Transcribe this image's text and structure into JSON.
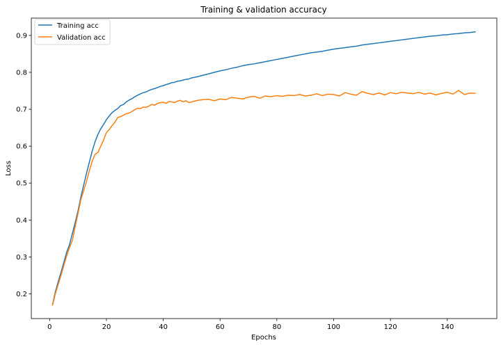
{
  "chart_data": {
    "type": "line",
    "title": "Training & validation accuracy",
    "xlabel": "Epochs",
    "ylabel": "Loss",
    "xlim": [
      -6.45,
      157.45
    ],
    "ylim": [
      0.133,
      0.947
    ],
    "xticks": [
      0,
      20,
      40,
      60,
      80,
      100,
      120,
      140
    ],
    "yticks": [
      0.2,
      0.3,
      0.4,
      0.5,
      0.6,
      0.7,
      0.8,
      0.9
    ],
    "grid": false,
    "legend": "top-left",
    "series": [
      {
        "name": "Training acc",
        "color": "#1f77b4",
        "points": [
          [
            1,
            0.17
          ],
          [
            2,
            0.205
          ],
          [
            3,
            0.232
          ],
          [
            4,
            0.258
          ],
          [
            5,
            0.285
          ],
          [
            6,
            0.313
          ],
          [
            7,
            0.333
          ],
          [
            8,
            0.363
          ],
          [
            9,
            0.393
          ],
          [
            10,
            0.425
          ],
          [
            11,
            0.462
          ],
          [
            12,
            0.495
          ],
          [
            13,
            0.527
          ],
          [
            14,
            0.557
          ],
          [
            15,
            0.587
          ],
          [
            16,
            0.612
          ],
          [
            17,
            0.632
          ],
          [
            18,
            0.647
          ],
          [
            19,
            0.659
          ],
          [
            20,
            0.672
          ],
          [
            21,
            0.682
          ],
          [
            22,
            0.691
          ],
          [
            23,
            0.697
          ],
          [
            24,
            0.702
          ],
          [
            25,
            0.71
          ],
          [
            26,
            0.713
          ],
          [
            27,
            0.72
          ],
          [
            28,
            0.725
          ],
          [
            29,
            0.729
          ],
          [
            30,
            0.734
          ],
          [
            31,
            0.738
          ],
          [
            32,
            0.742
          ],
          [
            33,
            0.745
          ],
          [
            34,
            0.747
          ],
          [
            35,
            0.751
          ],
          [
            36,
            0.754
          ],
          [
            37,
            0.756
          ],
          [
            38,
            0.759
          ],
          [
            39,
            0.762
          ],
          [
            40,
            0.764
          ],
          [
            41,
            0.767
          ],
          [
            42,
            0.769
          ],
          [
            43,
            0.772
          ],
          [
            44,
            0.773
          ],
          [
            45,
            0.776
          ],
          [
            46,
            0.777
          ],
          [
            47,
            0.779
          ],
          [
            48,
            0.781
          ],
          [
            49,
            0.782
          ],
          [
            50,
            0.785
          ],
          [
            52,
            0.788
          ],
          [
            54,
            0.792
          ],
          [
            56,
            0.796
          ],
          [
            58,
            0.8
          ],
          [
            60,
            0.804
          ],
          [
            62,
            0.807
          ],
          [
            64,
            0.811
          ],
          [
            66,
            0.814
          ],
          [
            68,
            0.818
          ],
          [
            70,
            0.821
          ],
          [
            72,
            0.823
          ],
          [
            74,
            0.826
          ],
          [
            76,
            0.829
          ],
          [
            78,
            0.832
          ],
          [
            80,
            0.835
          ],
          [
            82,
            0.838
          ],
          [
            84,
            0.841
          ],
          [
            86,
            0.844
          ],
          [
            88,
            0.847
          ],
          [
            90,
            0.85
          ],
          [
            92,
            0.853
          ],
          [
            94,
            0.855
          ],
          [
            96,
            0.857
          ],
          [
            98,
            0.86
          ],
          [
            100,
            0.863
          ],
          [
            102,
            0.865
          ],
          [
            104,
            0.867
          ],
          [
            106,
            0.869
          ],
          [
            108,
            0.871
          ],
          [
            110,
            0.874
          ],
          [
            112,
            0.876
          ],
          [
            114,
            0.878
          ],
          [
            116,
            0.88
          ],
          [
            118,
            0.882
          ],
          [
            120,
            0.884
          ],
          [
            122,
            0.886
          ],
          [
            124,
            0.888
          ],
          [
            126,
            0.89
          ],
          [
            128,
            0.892
          ],
          [
            130,
            0.894
          ],
          [
            132,
            0.896
          ],
          [
            134,
            0.898
          ],
          [
            136,
            0.899
          ],
          [
            138,
            0.901
          ],
          [
            140,
            0.902
          ],
          [
            142,
            0.904
          ],
          [
            144,
            0.905
          ],
          [
            146,
            0.907
          ],
          [
            148,
            0.908
          ],
          [
            150,
            0.91
          ]
        ]
      },
      {
        "name": "Validation acc",
        "color": "#ff7f0e",
        "points": [
          [
            1,
            0.168
          ],
          [
            2,
            0.2
          ],
          [
            3,
            0.225
          ],
          [
            4,
            0.25
          ],
          [
            5,
            0.277
          ],
          [
            6,
            0.303
          ],
          [
            7,
            0.325
          ],
          [
            8,
            0.345
          ],
          [
            9,
            0.382
          ],
          [
            10,
            0.418
          ],
          [
            11,
            0.455
          ],
          [
            12,
            0.48
          ],
          [
            13,
            0.505
          ],
          [
            14,
            0.534
          ],
          [
            15,
            0.56
          ],
          [
            16,
            0.578
          ],
          [
            17,
            0.583
          ],
          [
            18,
            0.6
          ],
          [
            19,
            0.617
          ],
          [
            20,
            0.637
          ],
          [
            21,
            0.645
          ],
          [
            22,
            0.656
          ],
          [
            23,
            0.665
          ],
          [
            24,
            0.678
          ],
          [
            25,
            0.68
          ],
          [
            26,
            0.684
          ],
          [
            27,
            0.688
          ],
          [
            28,
            0.69
          ],
          [
            29,
            0.694
          ],
          [
            30,
            0.699
          ],
          [
            31,
            0.703
          ],
          [
            32,
            0.702
          ],
          [
            33,
            0.706
          ],
          [
            34,
            0.705
          ],
          [
            35,
            0.709
          ],
          [
            36,
            0.713
          ],
          [
            37,
            0.711
          ],
          [
            38,
            0.716
          ],
          [
            39,
            0.718
          ],
          [
            40,
            0.719
          ],
          [
            41,
            0.716
          ],
          [
            42,
            0.721
          ],
          [
            43,
            0.72
          ],
          [
            44,
            0.718
          ],
          [
            45,
            0.722
          ],
          [
            46,
            0.724
          ],
          [
            47,
            0.72
          ],
          [
            48,
            0.723
          ],
          [
            49,
            0.718
          ],
          [
            50,
            0.72
          ],
          [
            52,
            0.724
          ],
          [
            54,
            0.726
          ],
          [
            56,
            0.727
          ],
          [
            58,
            0.723
          ],
          [
            60,
            0.728
          ],
          [
            62,
            0.726
          ],
          [
            64,
            0.732
          ],
          [
            66,
            0.73
          ],
          [
            68,
            0.728
          ],
          [
            70,
            0.733
          ],
          [
            72,
            0.735
          ],
          [
            74,
            0.73
          ],
          [
            76,
            0.736
          ],
          [
            78,
            0.734
          ],
          [
            80,
            0.737
          ],
          [
            82,
            0.735
          ],
          [
            84,
            0.738
          ],
          [
            86,
            0.737
          ],
          [
            88,
            0.74
          ],
          [
            90,
            0.736
          ],
          [
            92,
            0.738
          ],
          [
            94,
            0.742
          ],
          [
            96,
            0.737
          ],
          [
            98,
            0.741
          ],
          [
            100,
            0.74
          ],
          [
            102,
            0.736
          ],
          [
            104,
            0.745
          ],
          [
            106,
            0.741
          ],
          [
            108,
            0.738
          ],
          [
            110,
            0.748
          ],
          [
            112,
            0.743
          ],
          [
            114,
            0.74
          ],
          [
            116,
            0.744
          ],
          [
            118,
            0.739
          ],
          [
            120,
            0.745
          ],
          [
            122,
            0.742
          ],
          [
            124,
            0.746
          ],
          [
            126,
            0.744
          ],
          [
            128,
            0.742
          ],
          [
            130,
            0.746
          ],
          [
            132,
            0.741
          ],
          [
            134,
            0.744
          ],
          [
            136,
            0.739
          ],
          [
            138,
            0.743
          ],
          [
            140,
            0.746
          ],
          [
            142,
            0.741
          ],
          [
            144,
            0.751
          ],
          [
            146,
            0.74
          ],
          [
            148,
            0.744
          ],
          [
            150,
            0.743
          ]
        ]
      }
    ]
  }
}
